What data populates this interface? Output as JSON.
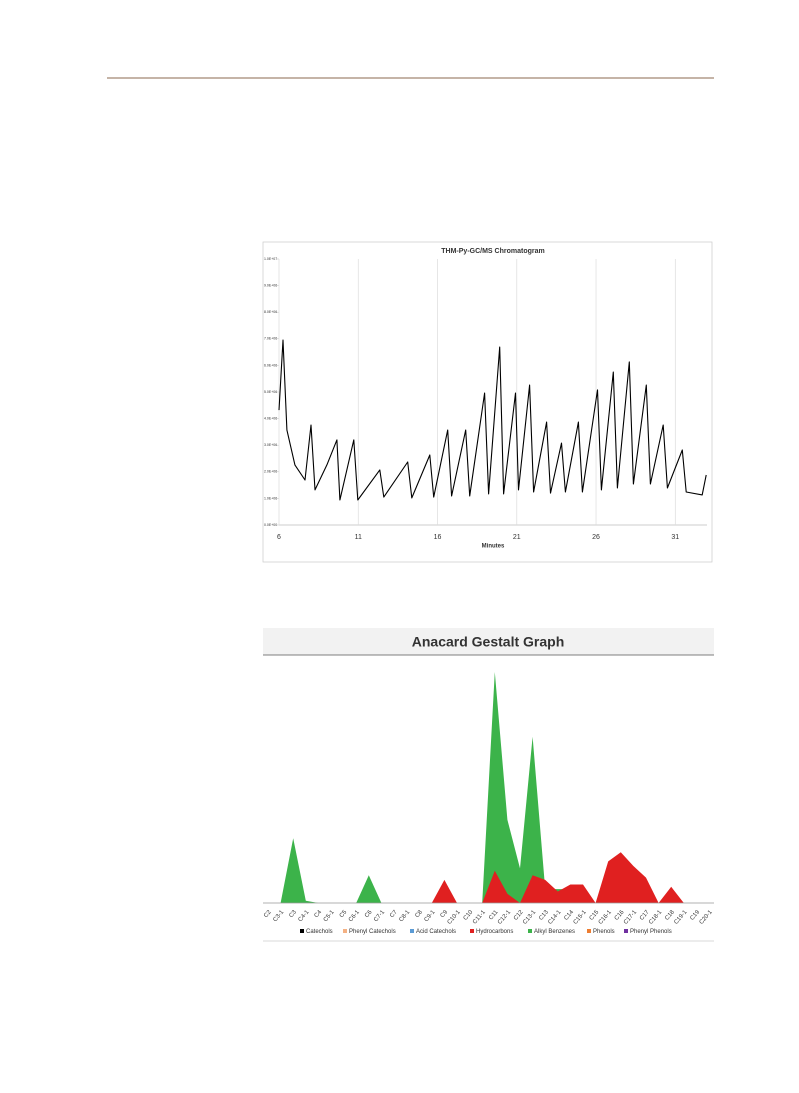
{
  "chart_data": [
    {
      "type": "line",
      "title": "THM-Py-GC/MS Chromatogram",
      "x_label": "Minutes",
      "color": "#000000",
      "xlim": [
        6,
        33
      ],
      "xticks": [
        6,
        11,
        16,
        21,
        26,
        31
      ],
      "ylim": [
        0,
        10000000
      ],
      "yticks": [
        {
          "value": 0,
          "label": "0.0E+00"
        },
        {
          "value": 1000000,
          "label": "1.0E+06"
        },
        {
          "value": 2000000,
          "label": "2.0E+06"
        },
        {
          "value": 3000000,
          "label": "3.0E+06"
        },
        {
          "value": 4000000,
          "label": "4.0E+06"
        },
        {
          "value": 5000000,
          "label": "5.0E+06"
        },
        {
          "value": 6000000,
          "label": "6.0E+06"
        },
        {
          "value": 7000000,
          "label": "7.0E+06"
        },
        {
          "value": 8000000,
          "label": "8.0E+06"
        },
        {
          "value": 9000000,
          "label": "9.0E+06"
        },
        {
          "value": 10000000,
          "label": "1.0E+07"
        }
      ],
      "grid": true,
      "x": [
        6.0,
        6.25,
        6.5,
        7.0,
        7.64,
        8.02,
        8.27,
        9.02,
        9.65,
        9.84,
        10.72,
        10.97,
        12.36,
        12.61,
        14.12,
        14.38,
        15.51,
        15.76,
        16.64,
        16.89,
        17.78,
        18.03,
        18.97,
        19.22,
        19.92,
        20.17,
        20.92,
        21.11,
        21.81,
        22.06,
        22.88,
        23.13,
        23.82,
        24.07,
        24.89,
        25.14,
        26.09,
        26.34,
        27.09,
        27.35,
        28.1,
        28.36,
        29.17,
        29.43,
        30.24,
        30.5,
        31.44,
        31.69,
        32.7,
        32.95
      ],
      "values": [
        4320000,
        6950000,
        3570000,
        2260000,
        1690000,
        3760000,
        1320000,
        2260000,
        3200000,
        940000,
        3200000,
        940000,
        2070000,
        1050000,
        2370000,
        1020000,
        2630000,
        1050000,
        3570000,
        1090000,
        3570000,
        1090000,
        4960000,
        1170000,
        6690000,
        1170000,
        4960000,
        1320000,
        5260000,
        1240000,
        3870000,
        1200000,
        3080000,
        1240000,
        3870000,
        1240000,
        5080000,
        1320000,
        5750000,
        1390000,
        6130000,
        1540000,
        5260000,
        1540000,
        3760000,
        1390000,
        2820000,
        1240000,
        1130000,
        1880000
      ]
    },
    {
      "type": "area",
      "title": "Anacard Gestalt Graph",
      "categories": [
        "C2",
        "C3-1",
        "C3",
        "C4-1",
        "C4",
        "C5-1",
        "C5",
        "C6-1",
        "C6",
        "C7-1",
        "C7",
        "C8-1",
        "C8",
        "C9-1",
        "C9",
        "C10-1",
        "C10",
        "C11-1",
        "C11",
        "C12-1",
        "C12",
        "C13-1",
        "C13",
        "C14-1",
        "C14",
        "C15-1",
        "C15",
        "C16-1",
        "C16",
        "C17-1",
        "C17",
        "C18-1",
        "C18",
        "C19-1",
        "C19",
        "C20-1"
      ],
      "ylim": [
        0,
        100
      ],
      "legend": "bottom",
      "series": [
        {
          "name": "Catechols",
          "color": "#000000",
          "values": [
            0,
            0,
            0,
            0,
            0,
            0,
            0,
            0,
            0,
            0,
            0,
            0,
            0,
            0,
            0,
            0,
            0,
            0,
            0,
            0,
            0,
            0,
            0,
            0,
            0,
            0,
            0,
            0,
            0,
            0,
            0,
            0,
            0,
            0,
            0,
            0
          ]
        },
        {
          "name": "Phenyl Catechols",
          "color": "#f4b183",
          "values": [
            0,
            0,
            0,
            0,
            0,
            0,
            0,
            0,
            0,
            0,
            0,
            0,
            0,
            0,
            0,
            0,
            0,
            0,
            0,
            0,
            0,
            0,
            0,
            0,
            0,
            0,
            0,
            0,
            0,
            0,
            0,
            0,
            0,
            0,
            0,
            0
          ]
        },
        {
          "name": "Acid Catechols",
          "color": "#5b9bd5",
          "values": [
            0,
            0,
            0,
            0,
            0,
            0,
            0,
            0,
            0,
            0,
            0,
            0,
            0,
            0,
            0,
            0,
            0,
            0,
            0,
            0,
            0,
            0,
            0,
            0,
            0,
            0,
            0,
            0,
            0,
            0,
            0,
            0,
            0,
            0,
            0,
            0
          ]
        },
        {
          "name": "Hydrocarbons",
          "color": "#e02020",
          "values": [
            0,
            0,
            0,
            0,
            0,
            0,
            0,
            0,
            0,
            0,
            0,
            0,
            0,
            0,
            10,
            0,
            0,
            0,
            14,
            4,
            0,
            12,
            10,
            5,
            8,
            8,
            0,
            18,
            22,
            16,
            11,
            0,
            7,
            0,
            0,
            0
          ]
        },
        {
          "name": "Alkyl Benzenes",
          "color": "#3cb34a",
          "values": [
            0,
            0,
            28,
            1,
            0,
            0,
            0,
            0,
            12,
            0,
            0,
            0,
            0,
            0,
            0,
            0,
            0,
            0,
            100,
            36,
            15,
            72,
            6,
            6,
            6,
            0,
            0,
            0,
            0,
            0,
            0,
            0,
            0,
            0,
            0,
            0
          ]
        },
        {
          "name": "Phenols",
          "color": "#ed7d31",
          "values": [
            0,
            0,
            0,
            0,
            0,
            0,
            0,
            0,
            0,
            0,
            0,
            0,
            0,
            0,
            0,
            0,
            0,
            0,
            0,
            0,
            0,
            0,
            0,
            0,
            0,
            0,
            0,
            0,
            0,
            0,
            0,
            0,
            0,
            0,
            0,
            0
          ]
        },
        {
          "name": "Phenyl Phenols",
          "color": "#7030a0",
          "values": [
            0,
            0,
            0,
            0,
            0,
            0,
            0,
            0,
            0,
            0,
            0,
            0,
            0,
            0,
            0,
            0,
            0,
            0,
            0,
            0,
            0,
            0,
            0,
            0,
            0,
            0,
            0,
            0,
            0,
            0,
            0,
            0,
            0,
            0,
            0,
            0
          ]
        }
      ]
    }
  ]
}
